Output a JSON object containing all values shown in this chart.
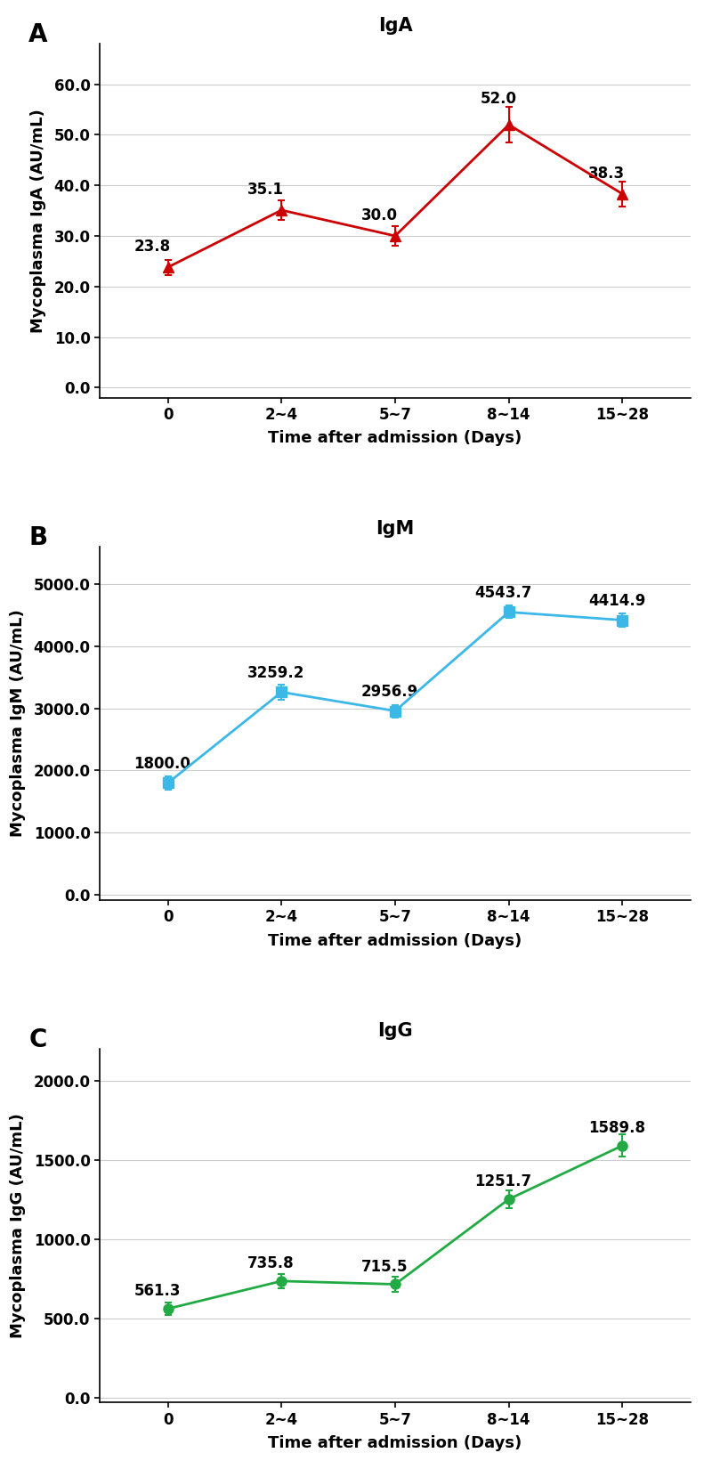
{
  "panels": [
    {
      "label": "A",
      "title": "IgA",
      "ylabel": "Mycoplasma IgA (AU/mL)",
      "color": "#CC0000",
      "marker": "^",
      "x_labels": [
        "0",
        "2~4",
        "5~7",
        "8~14",
        "15~28"
      ],
      "y_values": [
        23.8,
        35.1,
        30.0,
        52.0,
        38.3
      ],
      "y_errors": [
        1.5,
        2.0,
        2.0,
        3.5,
        2.5
      ],
      "ylim": [
        -2,
        68
      ],
      "yticks": [
        0.0,
        10.0,
        20.0,
        30.0,
        40.0,
        50.0,
        60.0
      ],
      "annot_offsets_x": [
        -0.3,
        -0.3,
        -0.3,
        -0.25,
        -0.3
      ],
      "annot_offsets_y": [
        2.5,
        2.5,
        2.5,
        3.5,
        2.5
      ]
    },
    {
      "label": "B",
      "title": "IgM",
      "ylabel": "Mycoplasma IgM (AU/mL)",
      "color": "#3BB8E8",
      "marker": "s",
      "x_labels": [
        "0",
        "2~4",
        "5~7",
        "8~14",
        "15~28"
      ],
      "y_values": [
        1800.0,
        3259.2,
        2956.9,
        4543.7,
        4414.9
      ],
      "y_errors": [
        110,
        120,
        100,
        100,
        110
      ],
      "ylim": [
        -80,
        5600
      ],
      "yticks": [
        0.0,
        1000.0,
        2000.0,
        3000.0,
        4000.0,
        5000.0
      ],
      "annot_offsets_x": [
        -0.3,
        -0.3,
        -0.3,
        -0.3,
        -0.3
      ],
      "annot_offsets_y": [
        180,
        180,
        180,
        180,
        180
      ]
    },
    {
      "label": "C",
      "title": "IgG",
      "ylabel": "Mycoplasma IgG (AU/mL)",
      "color": "#22AA44",
      "marker": "o",
      "x_labels": [
        "0",
        "2~4",
        "5~7",
        "8~14",
        "15~28"
      ],
      "y_values": [
        561.3,
        735.8,
        715.5,
        1251.7,
        1589.8
      ],
      "y_errors": [
        38,
        45,
        45,
        55,
        70
      ],
      "ylim": [
        -30,
        2200
      ],
      "yticks": [
        0.0,
        500.0,
        1000.0,
        1500.0,
        2000.0
      ],
      "annot_offsets_x": [
        -0.3,
        -0.3,
        -0.3,
        -0.3,
        -0.3
      ],
      "annot_offsets_y": [
        60,
        60,
        60,
        60,
        60
      ]
    }
  ],
  "xlabel": "Time after admission (Days)",
  "bg_color": "#FFFFFF",
  "title_fontsize": 15,
  "label_fontsize": 13,
  "tick_fontsize": 12,
  "annot_fontsize": 12,
  "panel_label_fontsize": 20,
  "linewidth": 2.0,
  "markersize": 8,
  "capsize": 3,
  "grid_color": "#CCCCCC",
  "spine_color": "#000000"
}
